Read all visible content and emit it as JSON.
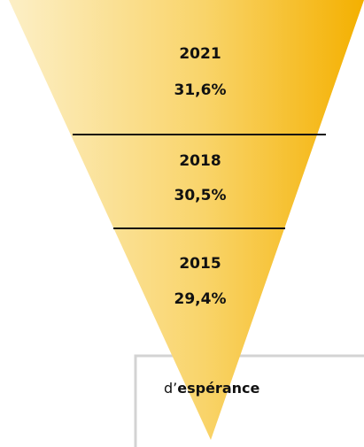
{
  "segments": [
    {
      "year": "2021",
      "value": "31,6%"
    },
    {
      "year": "2018",
      "value": "30,5%"
    },
    {
      "year": "2015",
      "value": "29,4%"
    }
  ],
  "box": {
    "prefix": "d’",
    "bold": "espérance"
  }
}
